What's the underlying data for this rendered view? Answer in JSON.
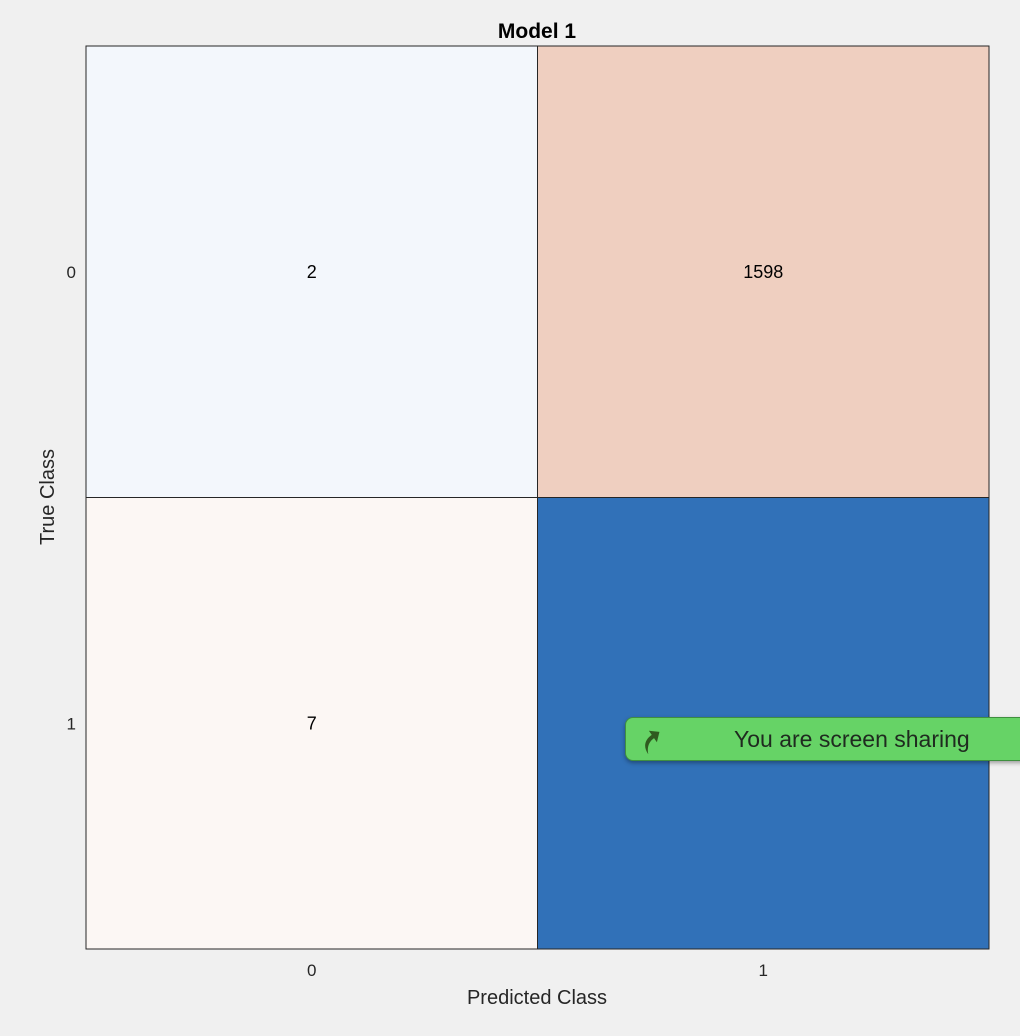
{
  "chart_data": {
    "type": "heatmap",
    "title": "Model 1",
    "xlabel": "Predicted Class",
    "ylabel": "True Class",
    "x_categories": [
      "0",
      "1"
    ],
    "y_categories": [
      "0",
      "1"
    ],
    "cells": [
      {
        "row": 0,
        "col": 0,
        "value": 2,
        "label": "2",
        "color": "#f3f7fc"
      },
      {
        "row": 0,
        "col": 1,
        "value": 1598,
        "label": "1598",
        "color": "#efcfc0"
      },
      {
        "row": 1,
        "col": 0,
        "value": 7,
        "label": "7",
        "color": "#fcf7f4"
      },
      {
        "row": 1,
        "col": 1,
        "value": null,
        "label": "",
        "color": "#3171b8"
      }
    ],
    "grid": true
  },
  "overlay": {
    "banner_text": "You are screen sharing",
    "banner_icon": "share-arrow-icon",
    "banner_color": "#66d366"
  }
}
